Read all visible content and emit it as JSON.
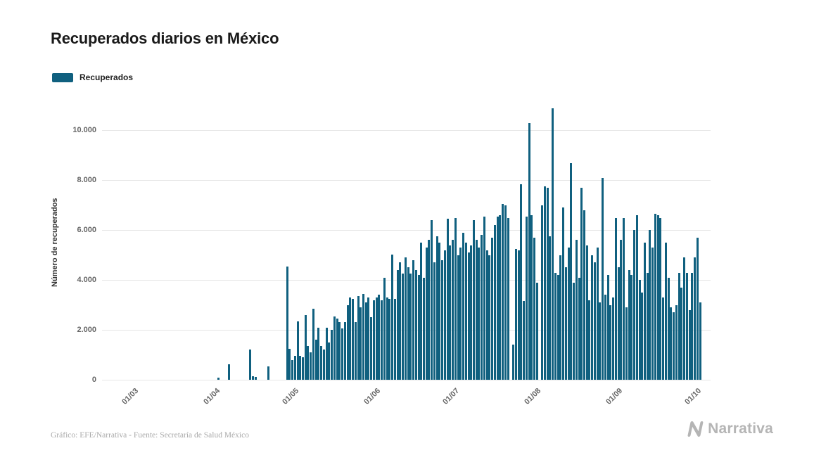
{
  "title": "Recuperados diarios en México",
  "legend": {
    "label": "Recuperados",
    "color": "#10607f"
  },
  "footer": {
    "credit": "Gráfico: EFE/Narrativa - Fuente: Secretaría de Salud México",
    "brand": "Narrativa"
  },
  "chart_data": {
    "type": "bar",
    "title": "Recuperados diarios en México",
    "xlabel": "",
    "ylabel": "Número de recuperados",
    "series_name": "Recuperados",
    "bar_color": "#10607f",
    "grid": "horizontal",
    "legend_position": "top-left",
    "frequency": "daily",
    "x_start_label": "01/03",
    "x_end_label": "01/10",
    "ylim": [
      0,
      11000
    ],
    "yticks": [
      {
        "value": 0,
        "label": "0"
      },
      {
        "value": 2000,
        "label": "2.000"
      },
      {
        "value": 4000,
        "label": "4.000"
      },
      {
        "value": 6000,
        "label": "6.000"
      },
      {
        "value": 8000,
        "label": "8.000"
      },
      {
        "value": 10000,
        "label": "10.000"
      }
    ],
    "xticks": [
      {
        "day": 0,
        "label": "01/03"
      },
      {
        "day": 31,
        "label": "01/04"
      },
      {
        "day": 61,
        "label": "01/05"
      },
      {
        "day": 92,
        "label": "01/06"
      },
      {
        "day": 122,
        "label": "01/07"
      },
      {
        "day": 153,
        "label": "01/08"
      },
      {
        "day": 184,
        "label": "01/09"
      },
      {
        "day": 214,
        "label": "01/10"
      }
    ],
    "values": [
      0,
      0,
      0,
      0,
      0,
      0,
      0,
      0,
      0,
      0,
      0,
      0,
      0,
      0,
      0,
      0,
      0,
      0,
      0,
      0,
      0,
      0,
      0,
      0,
      0,
      0,
      0,
      0,
      0,
      0,
      0,
      80,
      0,
      0,
      0,
      620,
      0,
      0,
      0,
      0,
      0,
      0,
      0,
      1200,
      150,
      120,
      0,
      0,
      0,
      0,
      550,
      0,
      0,
      0,
      0,
      0,
      0,
      4550,
      1250,
      800,
      950,
      2350,
      950,
      900,
      2600,
      1350,
      1100,
      2850,
      1600,
      2100,
      1350,
      1200,
      2100,
      1500,
      2000,
      2550,
      2450,
      2300,
      2050,
      2300,
      3000,
      3300,
      3250,
      2300,
      3350,
      2900,
      3450,
      3100,
      3300,
      2500,
      3200,
      3300,
      3400,
      3200,
      4100,
      3300,
      3250,
      5030,
      3250,
      4400,
      4700,
      4250,
      4900,
      4500,
      4250,
      4800,
      4400,
      4200,
      5500,
      4100,
      5300,
      5600,
      6400,
      4700,
      5750,
      5500,
      4800,
      5200,
      6450,
      5400,
      5600,
      6500,
      5000,
      5300,
      5900,
      5500,
      5100,
      5400,
      6400,
      5600,
      5300,
      5800,
      6550,
      5200,
      5000,
      5700,
      6200,
      6550,
      6600,
      7050,
      7000,
      6500,
      0,
      1400,
      5250,
      5200,
      7850,
      3150,
      6550,
      10300,
      6600,
      5700,
      3900,
      0,
      7000,
      7750,
      7700,
      5750,
      10900,
      4300,
      4200,
      5000,
      6900,
      4500,
      5300,
      8700,
      3900,
      5600,
      4100,
      7700,
      6800,
      5400,
      3200,
      5000,
      4700,
      5300,
      3100,
      8100,
      3400,
      4200,
      3000,
      3300,
      6500,
      4500,
      5600,
      6500,
      2900,
      4400,
      4200,
      6000,
      6600,
      4000,
      3500,
      5500,
      4300,
      6000,
      5300,
      6650,
      6600,
      6500,
      3300,
      5500,
      4100,
      2900,
      2700,
      3000,
      4300,
      3700,
      4900,
      4300,
      2800,
      4300,
      4900,
      5700,
      3100
    ]
  }
}
